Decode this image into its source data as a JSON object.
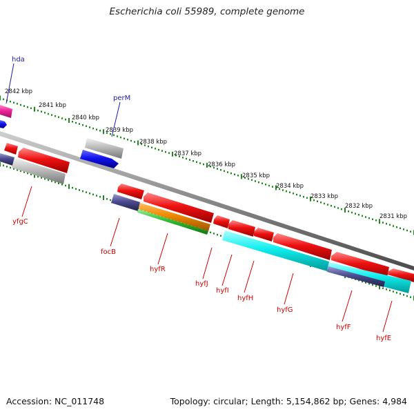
{
  "title": "Escherichia coli 55989, complete genome",
  "accession": "Accession: NC_011748",
  "summary": "Topology: circular; Length: 5,154,862 bp; Genes: 4,984",
  "kbp_labels": [
    "2842 kbp",
    "2841 kbp",
    "2840 kbp",
    "2839 kbp",
    "2838 kbp",
    "2837 kbp",
    "2836 kbp",
    "2835 kbp",
    "2834 kbp",
    "2833 kbp",
    "2832 kbp",
    "2831 kbp"
  ],
  "gene_labels": {
    "hda": "hda",
    "perM": "perM",
    "yfgC": "yfgC",
    "focB": "focB",
    "hyfR": "hyfR",
    "hyfJ": "hyfJ",
    "hyfI": "hyfI",
    "hyfH": "hyfH",
    "hyfG": "hyfG",
    "hyfF": "hyfF",
    "hyfE": "hyfE"
  },
  "colors": {
    "red": "#ee1111",
    "blue": "#1111ee",
    "grey": "#bbbbbb",
    "slate": "#4a4a8e",
    "magenta": "#ee2299",
    "cyan": "#11eeee",
    "orange": "#ee8800",
    "green": "#33bb33",
    "tick": "#1a8a1a",
    "label_red": "#cc0000",
    "label_blue": "#1a1aa8"
  }
}
